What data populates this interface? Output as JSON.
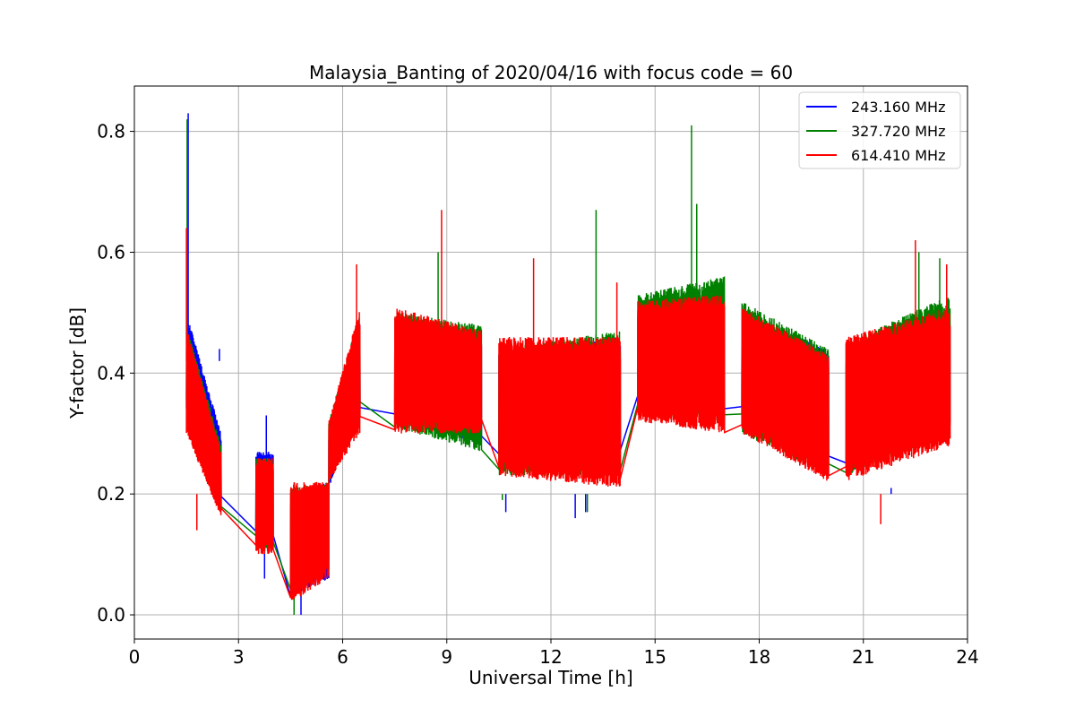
{
  "chart_data": {
    "type": "line",
    "title": "Malaysia_Banting of 2020/04/16 with focus code = 60",
    "xlabel": "Universal Time [h]",
    "ylabel": "Y-factor [dB]",
    "xlim": [
      0,
      24
    ],
    "ylim": [
      -0.04,
      0.875
    ],
    "xticks": [
      0,
      3,
      6,
      9,
      12,
      15,
      18,
      21,
      24
    ],
    "xtick_labels": [
      "0",
      "3",
      "6",
      "9",
      "12",
      "15",
      "18",
      "21",
      "24"
    ],
    "yticks": [
      0.0,
      0.2,
      0.4,
      0.6,
      0.8
    ],
    "ytick_labels": [
      "0.0",
      "0.2",
      "0.4",
      "0.6",
      "0.8"
    ],
    "grid": true,
    "legend_position": "upper-right",
    "series": [
      {
        "name": "243.160 MHz",
        "color": "#0000ff",
        "segments": [
          {
            "x0": 1.5,
            "x1": 2.5,
            "lo": [
              0.33,
              0.19
            ],
            "hi": [
              0.5,
              0.3
            ]
          },
          {
            "x0": 3.5,
            "x1": 4.0,
            "lo": [
              0.12,
              0.12
            ],
            "hi": [
              0.27,
              0.27
            ]
          },
          {
            "x0": 4.5,
            "x1": 5.6,
            "lo": [
              0.03,
              0.06
            ],
            "hi": [
              0.2,
              0.22
            ]
          },
          {
            "x0": 5.6,
            "x1": 6.5,
            "lo": [
              0.21,
              0.34
            ],
            "hi": [
              0.3,
              0.49
            ]
          },
          {
            "x0": 7.5,
            "x1": 10.0,
            "lo": [
              0.33,
              0.28
            ],
            "hi": [
              0.49,
              0.47
            ]
          },
          {
            "x0": 10.5,
            "x1": 14.0,
            "lo": [
              0.25,
              0.24
            ],
            "hi": [
              0.44,
              0.46
            ]
          },
          {
            "x0": 14.5,
            "x1": 17.0,
            "lo": [
              0.34,
              0.34
            ],
            "hi": [
              0.51,
              0.53
            ]
          },
          {
            "x0": 17.5,
            "x1": 20.0,
            "lo": [
              0.32,
              0.24
            ],
            "hi": [
              0.5,
              0.44
            ]
          },
          {
            "x0": 20.5,
            "x1": 23.5,
            "lo": [
              0.24,
              0.31
            ],
            "hi": [
              0.44,
              0.5
            ]
          }
        ],
        "spikes": [
          [
            1.55,
            0.83
          ],
          [
            2.45,
            0.44
          ],
          [
            3.8,
            0.33
          ],
          [
            3.75,
            0.06
          ],
          [
            4.8,
            0.0
          ],
          [
            10.7,
            0.17
          ],
          [
            12.7,
            0.16
          ],
          [
            13.0,
            0.17
          ],
          [
            21.8,
            0.21
          ]
        ]
      },
      {
        "name": "327.720 MHz",
        "color": "#008000",
        "segments": [
          {
            "x0": 1.5,
            "x1": 2.5,
            "lo": [
              0.34,
              0.17
            ],
            "hi": [
              0.48,
              0.28
            ]
          },
          {
            "x0": 3.5,
            "x1": 4.0,
            "lo": [
              0.11,
              0.11
            ],
            "hi": [
              0.26,
              0.26
            ]
          },
          {
            "x0": 4.5,
            "x1": 5.6,
            "lo": [
              0.03,
              0.08
            ],
            "hi": [
              0.21,
              0.22
            ]
          },
          {
            "x0": 5.6,
            "x1": 6.5,
            "lo": [
              0.22,
              0.33
            ],
            "hi": [
              0.32,
              0.5
            ]
          },
          {
            "x0": 7.5,
            "x1": 10.0,
            "lo": [
              0.31,
              0.27
            ],
            "hi": [
              0.5,
              0.48
            ]
          },
          {
            "x0": 10.5,
            "x1": 14.0,
            "lo": [
              0.23,
              0.23
            ],
            "hi": [
              0.44,
              0.47
            ]
          },
          {
            "x0": 14.5,
            "x1": 17.0,
            "lo": [
              0.33,
              0.32
            ],
            "hi": [
              0.53,
              0.56
            ]
          },
          {
            "x0": 17.5,
            "x1": 20.0,
            "lo": [
              0.3,
              0.23
            ],
            "hi": [
              0.52,
              0.44
            ]
          },
          {
            "x0": 20.5,
            "x1": 23.5,
            "lo": [
              0.23,
              0.3
            ],
            "hi": [
              0.45,
              0.53
            ]
          }
        ],
        "spikes": [
          [
            1.52,
            0.82
          ],
          [
            8.75,
            0.6
          ],
          [
            10.6,
            0.19
          ],
          [
            13.3,
            0.67
          ],
          [
            13.05,
            0.17
          ],
          [
            16.05,
            0.81
          ],
          [
            16.2,
            0.68
          ],
          [
            4.6,
            0.0
          ],
          [
            22.6,
            0.6
          ],
          [
            23.2,
            0.59
          ]
        ]
      },
      {
        "name": "614.410 MHz",
        "color": "#ff0000",
        "segments": [
          {
            "x0": 1.5,
            "x1": 2.5,
            "lo": [
              0.3,
              0.16
            ],
            "hi": [
              0.48,
              0.27
            ]
          },
          {
            "x0": 3.5,
            "x1": 4.0,
            "lo": [
              0.1,
              0.1
            ],
            "hi": [
              0.26,
              0.26
            ]
          },
          {
            "x0": 4.5,
            "x1": 5.6,
            "lo": [
              0.02,
              0.06
            ],
            "hi": [
              0.22,
              0.22
            ]
          },
          {
            "x0": 5.6,
            "x1": 6.5,
            "lo": [
              0.22,
              0.3
            ],
            "hi": [
              0.32,
              0.51
            ]
          },
          {
            "x0": 7.5,
            "x1": 10.0,
            "lo": [
              0.3,
              0.3
            ],
            "hi": [
              0.51,
              0.47
            ]
          },
          {
            "x0": 10.5,
            "x1": 14.0,
            "lo": [
              0.23,
              0.21
            ],
            "hi": [
              0.46,
              0.46
            ]
          },
          {
            "x0": 14.5,
            "x1": 17.0,
            "lo": [
              0.32,
              0.3
            ],
            "hi": [
              0.52,
              0.53
            ]
          },
          {
            "x0": 17.5,
            "x1": 20.0,
            "lo": [
              0.3,
              0.22
            ],
            "hi": [
              0.51,
              0.43
            ]
          },
          {
            "x0": 20.5,
            "x1": 23.5,
            "lo": [
              0.22,
              0.28
            ],
            "hi": [
              0.46,
              0.51
            ]
          }
        ],
        "spikes": [
          [
            1.5,
            0.64
          ],
          [
            1.8,
            0.14
          ],
          [
            6.4,
            0.58
          ],
          [
            8.85,
            0.67
          ],
          [
            11.5,
            0.59
          ],
          [
            13.9,
            0.55
          ],
          [
            21.5,
            0.15
          ],
          [
            22.5,
            0.62
          ],
          [
            23.4,
            0.58
          ]
        ]
      }
    ]
  }
}
